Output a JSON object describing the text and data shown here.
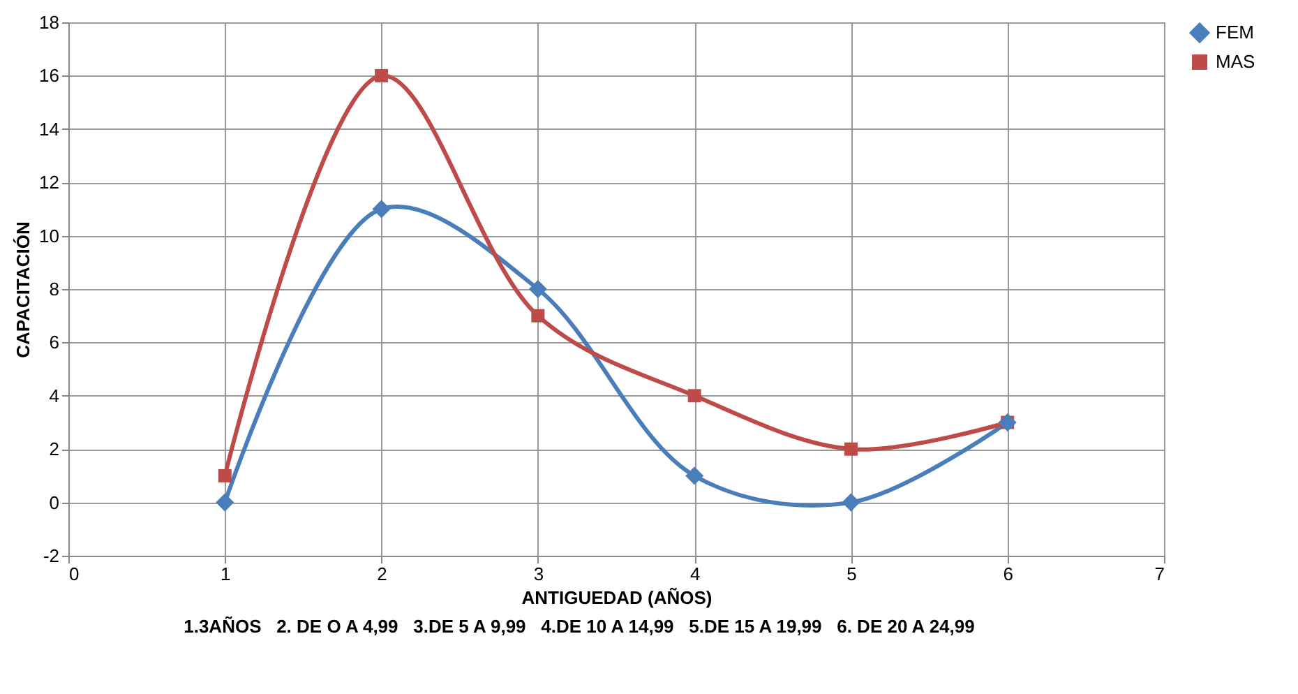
{
  "chart_data": {
    "type": "line",
    "xlabel": "ANTIGUEDAD (AÑOS)",
    "ylabel": "CAPACITACIÓN",
    "x": [
      1,
      2,
      3,
      4,
      5,
      6
    ],
    "series": [
      {
        "name": "FEM",
        "color": "#4a7ebb",
        "marker": "diamond",
        "values": [
          0,
          11,
          8,
          1,
          0,
          3
        ]
      },
      {
        "name": "MAS",
        "color": "#be4b48",
        "marker": "square",
        "values": [
          1,
          16,
          7,
          4,
          2,
          3
        ]
      }
    ],
    "xlim": [
      0,
      7
    ],
    "xticks": [
      0,
      1,
      2,
      3,
      4,
      5,
      6,
      7
    ],
    "ylim": [
      -2,
      18
    ],
    "yticks": [
      -2,
      0,
      2,
      4,
      6,
      8,
      10,
      12,
      14,
      16,
      18
    ],
    "grid": true,
    "legend": "right",
    "line_style": "solid",
    "annotations": [
      "1.3AÑOS   2. DE O A 4,99   3.DE 5 A 9,99   4.DE 10 A 14,99   5.DE 15 A 19,99   6. DE 20 A 24,99"
    ]
  }
}
